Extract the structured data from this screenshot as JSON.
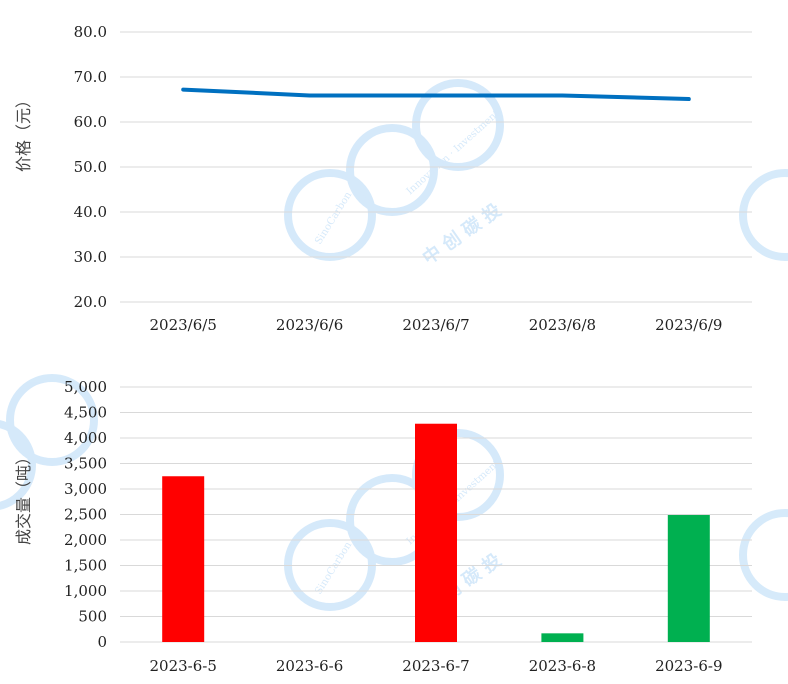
{
  "charts": {
    "price": {
      "ylabel": "价格（元）"
    },
    "volume": {
      "ylabel": "成交量（吨）"
    }
  },
  "watermark": {
    "brand_en": "SinoCarbon",
    "slogan_en": "Innovation · Investment",
    "brand_cn": "中 创 碳 投",
    "color": "#1e88e5"
  },
  "chart_data": [
    {
      "type": "line",
      "categories": [
        "2023/6/5",
        "2023/6/6",
        "2023/6/7",
        "2023/6/8",
        "2023/6/9"
      ],
      "series": [
        {
          "values": [
            67.2,
            65.9,
            65.9,
            65.9,
            65.1
          ],
          "color": "#0070c0"
        }
      ],
      "ylabel": "价格（元）",
      "ylim": [
        20,
        80
      ],
      "yticks": [
        20,
        30,
        40,
        50,
        60,
        70,
        80
      ],
      "ytick_labels": [
        "20.0",
        "30.0",
        "40.0",
        "50.0",
        "60.0",
        "70.0",
        "80.0"
      ],
      "grid": true
    },
    {
      "type": "bar",
      "categories": [
        "2023-6-5",
        "2023-6-6",
        "2023-6-7",
        "2023-6-8",
        "2023-6-9"
      ],
      "values": [
        3250,
        0,
        4280,
        170,
        2490
      ],
      "colors": [
        "#ff0000",
        "#ff0000",
        "#ff0000",
        "#00b050",
        "#00b050"
      ],
      "ylabel": "成交量（吨）",
      "ylim": [
        0,
        5000
      ],
      "yticks": [
        0,
        500,
        1000,
        1500,
        2000,
        2500,
        3000,
        3500,
        4000,
        4500,
        5000
      ],
      "ytick_labels": [
        "0",
        "500",
        "1,000",
        "1,500",
        "2,000",
        "2,500",
        "3,000",
        "3,500",
        "4,000",
        "4,500",
        "5,000"
      ],
      "grid": true
    }
  ]
}
